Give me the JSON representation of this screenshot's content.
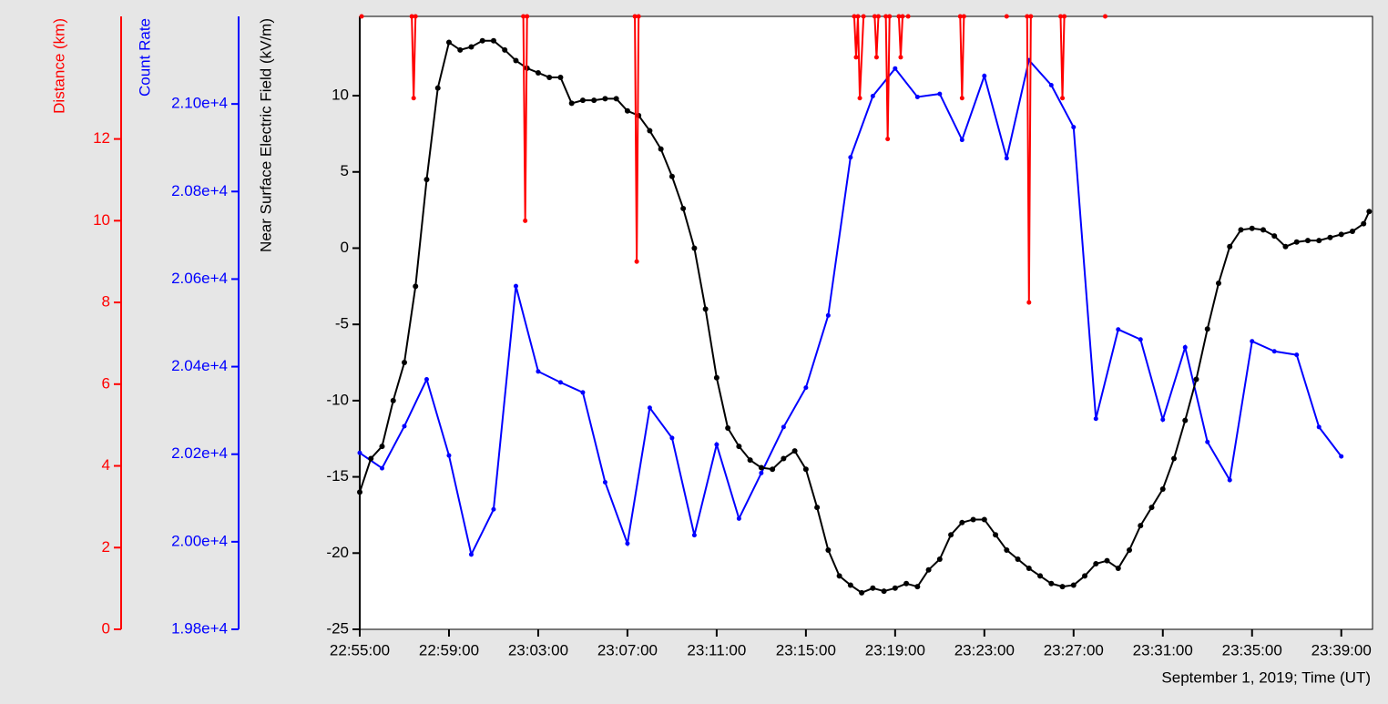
{
  "chart_data": {
    "type": "line",
    "xlabel": "September 1, 2019; Time (UT)",
    "xlim": [
      "22:55:00",
      "23:40:24"
    ],
    "xticks": [
      "22:55:00",
      "22:59:00",
      "23:03:00",
      "23:07:00",
      "23:11:00",
      "23:15:00",
      "23:19:00",
      "23:23:00",
      "23:27:00",
      "23:31:00",
      "23:35:00",
      "23:39:00"
    ],
    "axes": [
      {
        "label": "Distance (km)",
        "color": "#ff0000",
        "ylim": [
          0,
          15
        ],
        "yticks": [
          0,
          2,
          4,
          6,
          8,
          10,
          12
        ]
      },
      {
        "label": "Count Rate",
        "color": "#0000ff",
        "ylim": [
          19800,
          21200
        ],
        "yticks": [
          {
            "value": 19800,
            "label": "1.98e+4"
          },
          {
            "value": 20000,
            "label": "2.00e+4"
          },
          {
            "value": 20200,
            "label": "2.02e+4"
          },
          {
            "value": 20400,
            "label": "2.04e+4"
          },
          {
            "value": 20600,
            "label": "2.06e+4"
          },
          {
            "value": 20800,
            "label": "2.08e+4"
          },
          {
            "value": 21000,
            "label": "2.10e+4"
          }
        ]
      },
      {
        "label": "Near Surface Electric Field (kV/m)",
        "color": "#000000",
        "ylim": [
          -25,
          15.2
        ],
        "yticks": [
          -25,
          -20,
          -15,
          -10,
          -5,
          0,
          5,
          10
        ]
      }
    ],
    "series": [
      {
        "axis": 1,
        "color": "#0000ff",
        "x": [
          "22:55:00",
          "22:56:00",
          "22:57:00",
          "22:58:00",
          "22:59:00",
          "23:00:00",
          "23:01:00",
          "23:02:00",
          "23:03:00",
          "23:04:00",
          "23:05:00",
          "23:06:00",
          "23:07:00",
          "23:08:00",
          "23:09:00",
          "23:10:00",
          "23:11:00",
          "23:12:00",
          "23:13:00",
          "23:14:00",
          "23:15:00",
          "23:16:00",
          "23:17:00",
          "23:18:00",
          "23:19:00",
          "23:20:00",
          "23:21:00",
          "23:22:00",
          "23:23:00",
          "23:24:00",
          "23:25:00",
          "23:26:00",
          "23:27:00",
          "23:28:00",
          "23:29:00",
          "23:30:00",
          "23:31:00",
          "23:32:00",
          "23:33:00",
          "23:34:00",
          "23:35:00",
          "23:36:00",
          "23:37:00",
          "23:38:00",
          "23:39:00"
        ],
        "values": [
          20203,
          20168,
          20264,
          20371,
          20197,
          19971,
          20074,
          20584,
          20389,
          20364,
          20341,
          20136,
          19996,
          20306,
          20237,
          20015,
          20222,
          20053,
          20157,
          20262,
          20352,
          20517,
          20878,
          21018,
          21081,
          21016,
          21023,
          20918,
          21064,
          20876,
          21100,
          21043,
          20947,
          20281,
          20485,
          20462,
          20279,
          20444,
          20228,
          20141,
          20458,
          20435,
          20427,
          20262,
          20195
        ]
      },
      {
        "axis": 2,
        "color": "#000000",
        "x": [
          "22:55:00",
          "22:55:30",
          "22:56:00",
          "22:56:30",
          "22:57:00",
          "22:57:30",
          "22:58:00",
          "22:58:30",
          "22:59:00",
          "22:59:30",
          "23:00:00",
          "23:00:30",
          "23:01:00",
          "23:01:30",
          "23:02:00",
          "23:02:30",
          "23:03:00",
          "23:03:30",
          "23:04:00",
          "23:04:30",
          "23:05:00",
          "23:05:30",
          "23:06:00",
          "23:06:30",
          "23:07:00",
          "23:07:30",
          "23:08:00",
          "23:08:30",
          "23:09:00",
          "23:09:30",
          "23:10:00",
          "23:10:30",
          "23:11:00",
          "23:11:30",
          "23:12:00",
          "23:12:30",
          "23:13:00",
          "23:13:30",
          "23:14:00",
          "23:14:30",
          "23:15:00",
          "23:15:30",
          "23:16:00",
          "23:16:30",
          "23:17:00",
          "23:17:30",
          "23:18:00",
          "23:18:30",
          "23:19:00",
          "23:19:30",
          "23:20:00",
          "23:20:30",
          "23:21:00",
          "23:21:30",
          "23:22:00",
          "23:22:30",
          "23:23:00",
          "23:23:30",
          "23:24:00",
          "23:24:30",
          "23:25:00",
          "23:25:30",
          "23:26:00",
          "23:26:30",
          "23:27:00",
          "23:27:30",
          "23:28:00",
          "23:28:30",
          "23:29:00",
          "23:29:30",
          "23:30:00",
          "23:30:30",
          "23:31:00",
          "23:31:30",
          "23:32:00",
          "23:32:30",
          "23:33:00",
          "23:33:30",
          "23:34:00",
          "23:34:30",
          "23:35:00",
          "23:35:30",
          "23:36:00",
          "23:36:30",
          "23:37:00",
          "23:37:30",
          "23:38:00",
          "23:38:30",
          "23:39:00",
          "23:39:30",
          "23:40:00",
          "23:40:15"
        ],
        "values": [
          -16.0,
          -13.8,
          -13.0,
          -10.0,
          -7.5,
          -2.5,
          4.5,
          10.5,
          13.5,
          13.0,
          13.2,
          13.6,
          13.6,
          13.0,
          12.3,
          11.8,
          11.5,
          11.2,
          11.2,
          9.5,
          9.7,
          9.7,
          9.8,
          9.8,
          9.0,
          8.7,
          7.7,
          6.5,
          4.7,
          2.6,
          0.0,
          -4.0,
          -8.5,
          -11.8,
          -13.0,
          -13.9,
          -14.4,
          -14.5,
          -13.8,
          -13.3,
          -14.5,
          -17.0,
          -19.8,
          -21.5,
          -22.1,
          -22.6,
          -22.3,
          -22.5,
          -22.3,
          -22.0,
          -22.2,
          -21.1,
          -20.4,
          -18.8,
          -18.0,
          -17.8,
          -17.8,
          -18.8,
          -19.8,
          -20.4,
          -21.0,
          -21.5,
          -22.0,
          -22.2,
          -22.1,
          -21.5,
          -20.7,
          -20.5,
          -21.0,
          -19.8,
          -18.2,
          -17.0,
          -15.8,
          -13.8,
          -11.3,
          -8.6,
          -5.3,
          -2.3,
          0.1,
          1.2,
          1.3,
          1.2,
          0.8,
          0.1,
          0.4,
          0.5,
          0.5,
          0.7,
          0.9,
          1.1,
          1.6,
          2.4
        ]
      },
      {
        "axis": 0,
        "color": "#ff0000",
        "x": [
          "22:55:05",
          "22:56:00",
          "22:57:20",
          "22:57:25",
          "22:57:30",
          "23:00:00",
          "23:02:20",
          "23:02:25",
          "23:02:30",
          "23:05:00",
          "23:07:20",
          "23:07:25",
          "23:07:30",
          "23:12:00",
          "23:17:10",
          "23:17:15",
          "23:17:20",
          "23:17:25",
          "23:17:35",
          "23:17:50",
          "23:18:05",
          "23:18:10",
          "23:18:15",
          "23:18:25",
          "23:18:35",
          "23:18:40",
          "23:18:45",
          "23:19:00",
          "23:19:10",
          "23:19:15",
          "23:19:20",
          "23:19:28",
          "23:19:35",
          "23:21:00",
          "23:21:55",
          "23:22:00",
          "23:22:05",
          "23:23:00",
          "23:24:00",
          "23:24:30",
          "23:24:55",
          "23:25:00",
          "23:25:05",
          "23:26:00",
          "23:26:25",
          "23:26:30",
          "23:26:35",
          "23:27:30",
          "23:28:25"
        ],
        "values": [
          15,
          null,
          15,
          13.0,
          15,
          null,
          15,
          10.0,
          15,
          null,
          15,
          9.0,
          15,
          null,
          15,
          14.0,
          15,
          13.0,
          15,
          null,
          15,
          14.0,
          15,
          null,
          15,
          12.0,
          15,
          null,
          15,
          14.0,
          15,
          null,
          15,
          null,
          15,
          13.0,
          15,
          null,
          15,
          null,
          15,
          8.0,
          15,
          null,
          15,
          13.0,
          15,
          null,
          15
        ]
      }
    ]
  }
}
